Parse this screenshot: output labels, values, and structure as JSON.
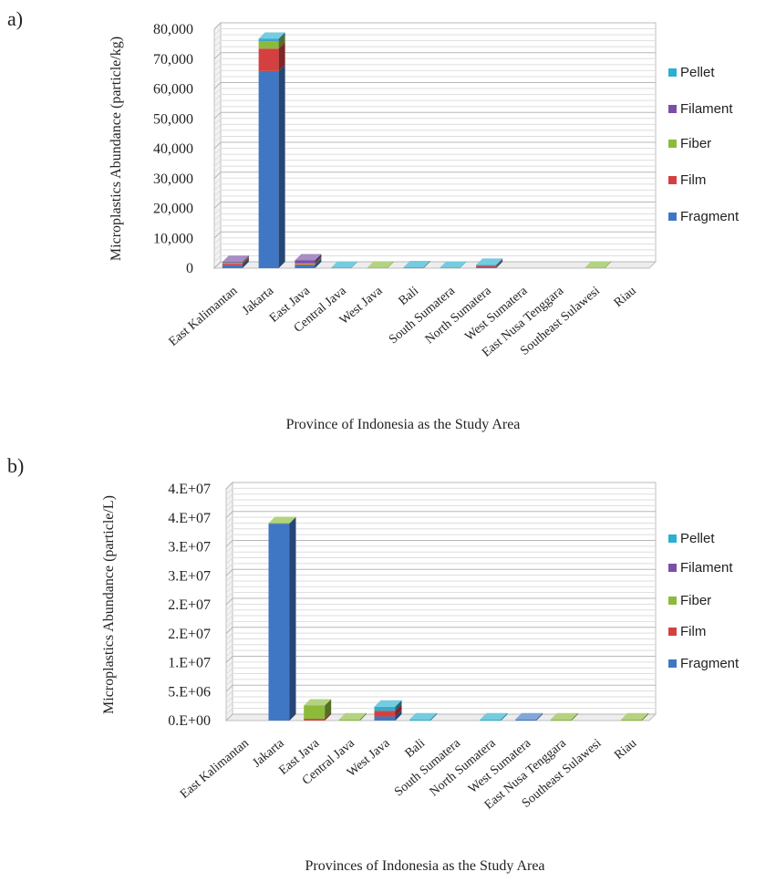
{
  "colors": {
    "Pellet": "#2bb0cf",
    "Filament": "#7b4fa6",
    "Fiber": "#8cbb3c",
    "Film": "#d44040",
    "Fragment": "#3f77c4"
  },
  "chart_data": [
    {
      "panel_label": "a)",
      "type": "bar",
      "stacked": true,
      "xlabel": "Province of Indonesia as the Study Area",
      "ylabel": "Microplastics Abundance (particle/kg)",
      "ylim": [
        0,
        80000
      ],
      "yticks": [
        "0",
        "10,000",
        "20,000",
        "30,000",
        "40,000",
        "50,000",
        "60,000",
        "70,000",
        "80,000"
      ],
      "categories": [
        "East Kalimantan",
        "Jakarta",
        "East Java",
        "Central Java",
        "West Java",
        "Bali",
        "South Sumatera",
        "North Sumatera",
        "West Sumatera",
        "East Nusa Tenggara",
        "Southeast Sulawesi",
        "Riau"
      ],
      "series": [
        {
          "name": "Fragment",
          "values": [
            1000,
            66000,
            1000,
            0,
            0,
            0,
            0,
            300,
            0,
            0,
            0,
            0
          ]
        },
        {
          "name": "Film",
          "values": [
            500,
            7500,
            300,
            0,
            0,
            0,
            0,
            300,
            0,
            0,
            0,
            0
          ]
        },
        {
          "name": "Fiber",
          "values": [
            300,
            2500,
            300,
            0,
            200,
            100,
            0,
            0,
            0,
            0,
            200,
            0
          ]
        },
        {
          "name": "Filament",
          "values": [
            300,
            100,
            1000,
            0,
            0,
            0,
            0,
            200,
            0,
            0,
            0,
            0
          ]
        },
        {
          "name": "Pellet",
          "values": [
            0,
            700,
            0,
            100,
            0,
            200,
            100,
            300,
            0,
            0,
            0,
            0
          ]
        }
      ],
      "legend_order": [
        "Pellet",
        "Filament",
        "Fiber",
        "Film",
        "Fragment"
      ],
      "legend_position": "right",
      "grid": true
    },
    {
      "panel_label": "b)",
      "type": "bar",
      "stacked": true,
      "xlabel": "Provinces of Indonesia as the Study Area",
      "ylabel": "Microplastics Abundance  (particle/L)",
      "ylim": [
        0,
        40000000
      ],
      "yticks": [
        "0.E+00",
        "5.E+06",
        "1.E+07",
        "2.E+07",
        "2.E+07",
        "3.E+07",
        "3.E+07",
        "4.E+07",
        "4.E+07"
      ],
      "categories": [
        "East Kalimantan",
        "Jakarta",
        "East Java",
        "Central Java",
        "West Java",
        "Bali",
        "South Sumatera",
        "North Sumatera",
        "West Sumatera",
        "East Nusa Tenggara",
        "Southeast Sulawesi",
        "Riau"
      ],
      "series": [
        {
          "name": "Fragment",
          "values": [
            0,
            34000000,
            0,
            0,
            700000,
            0,
            0,
            0,
            200000,
            0,
            0,
            0
          ]
        },
        {
          "name": "Film",
          "values": [
            0,
            0,
            300000,
            0,
            1000000,
            0,
            0,
            0,
            0,
            0,
            0,
            0
          ]
        },
        {
          "name": "Fiber",
          "values": [
            0,
            100000,
            2300000,
            200000,
            0,
            0,
            0,
            0,
            0,
            200000,
            0,
            200000
          ]
        },
        {
          "name": "Filament",
          "values": [
            0,
            0,
            0,
            0,
            0,
            0,
            0,
            0,
            0,
            0,
            0,
            0
          ]
        },
        {
          "name": "Pellet",
          "values": [
            0,
            0,
            0,
            0,
            700000,
            200000,
            0,
            200000,
            0,
            0,
            0,
            0
          ]
        }
      ],
      "legend_order": [
        "Pellet",
        "Filament",
        "Fiber",
        "Film",
        "Fragment"
      ],
      "legend_position": "right",
      "grid": true
    }
  ]
}
